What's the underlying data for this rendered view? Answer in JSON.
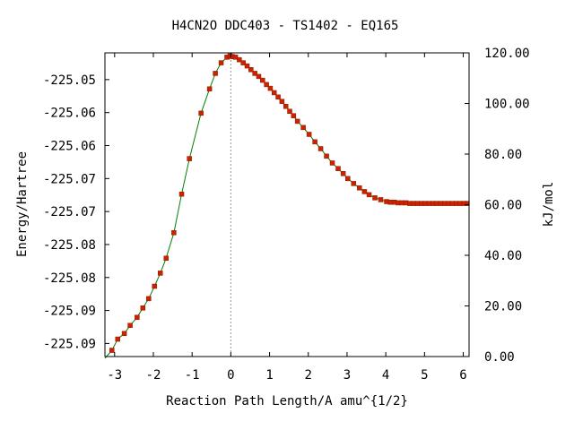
{
  "chart_data": {
    "type": "scatter",
    "title": "H4CN2O   DDC403 - TS1402 - EQ165",
    "xlabel": "Reaction Path Length/A amu^{1/2}",
    "ylabel_left": "Energy/Hartree",
    "ylabel_right": "kJ/mol",
    "xlim": [
      -3.25,
      6.15
    ],
    "ylim_left": [
      -225.0966,
      -225.0478
    ],
    "ylim_right": [
      0,
      120
    ],
    "x_ticks": [
      -3,
      -2,
      -1,
      0,
      1,
      2,
      3,
      4,
      5,
      6
    ],
    "y_ticks_left": [
      {
        "value": -225.0521,
        "label": "-225.05"
      },
      {
        "value": -225.0574,
        "label": "-225.06"
      },
      {
        "value": -225.0627,
        "label": "-225.06"
      },
      {
        "value": -225.068,
        "label": "-225.07"
      },
      {
        "value": -225.0733,
        "label": "-225.07"
      },
      {
        "value": -225.0786,
        "label": "-225.08"
      },
      {
        "value": -225.0839,
        "label": "-225.08"
      },
      {
        "value": -225.0892,
        "label": "-225.09"
      },
      {
        "value": -225.0945,
        "label": "-225.09"
      }
    ],
    "y_ticks_right": [
      "0.00",
      "20.00",
      "40.00",
      "60.00",
      "80.00",
      "100.00",
      "120.00"
    ],
    "ts_line_x": 0,
    "colors": {
      "line": "#008000",
      "points": "#cc2200",
      "ts_line": "#999999"
    },
    "series": [
      {
        "points": [
          [
            -3.07,
            -225.0956
          ],
          [
            -2.92,
            -225.0938
          ],
          [
            -2.75,
            -225.0929
          ],
          [
            -2.6,
            -225.0916
          ],
          [
            -2.42,
            -225.0903
          ],
          [
            -2.27,
            -225.0888
          ],
          [
            -2.12,
            -225.0873
          ],
          [
            -1.97,
            -225.0853
          ],
          [
            -1.82,
            -225.0832
          ],
          [
            -1.67,
            -225.0808
          ],
          [
            -1.47,
            -225.0767
          ],
          [
            -1.27,
            -225.0705
          ],
          [
            -1.07,
            -225.0648
          ],
          [
            -0.77,
            -225.0575
          ],
          [
            -0.55,
            -225.0536
          ],
          [
            -0.4,
            -225.0511
          ],
          [
            -0.25,
            -225.0494
          ],
          [
            -0.1,
            -225.0485
          ],
          [
            -0.02,
            -225.0483
          ],
          [
            0.04,
            -225.0484
          ],
          [
            0.12,
            -225.0485
          ],
          [
            0.22,
            -225.0489
          ],
          [
            0.32,
            -225.0494
          ],
          [
            0.42,
            -225.0499
          ],
          [
            0.52,
            -225.0505
          ],
          [
            0.62,
            -225.0511
          ],
          [
            0.72,
            -225.0516
          ],
          [
            0.82,
            -225.0522
          ],
          [
            0.92,
            -225.0529
          ],
          [
            1.02,
            -225.0535
          ],
          [
            1.12,
            -225.0542
          ],
          [
            1.22,
            -225.0549
          ],
          [
            1.32,
            -225.0556
          ],
          [
            1.42,
            -225.0564
          ],
          [
            1.52,
            -225.0572
          ],
          [
            1.62,
            -225.0579
          ],
          [
            1.72,
            -225.0588
          ],
          [
            1.87,
            -225.0598
          ],
          [
            2.02,
            -225.0609
          ],
          [
            2.17,
            -225.0621
          ],
          [
            2.32,
            -225.0632
          ],
          [
            2.47,
            -225.0644
          ],
          [
            2.62,
            -225.0655
          ],
          [
            2.77,
            -225.0664
          ],
          [
            2.9,
            -225.0672
          ],
          [
            3.02,
            -225.068
          ],
          [
            3.17,
            -225.0688
          ],
          [
            3.32,
            -225.0695
          ],
          [
            3.45,
            -225.0701
          ],
          [
            3.57,
            -225.0706
          ],
          [
            3.72,
            -225.0711
          ],
          [
            3.87,
            -225.0714
          ],
          [
            4.02,
            -225.0717
          ],
          [
            4.12,
            -225.0718
          ],
          [
            4.22,
            -225.0718
          ],
          [
            4.32,
            -225.0719
          ],
          [
            4.42,
            -225.0719
          ],
          [
            4.52,
            -225.0719
          ],
          [
            4.62,
            -225.072
          ],
          [
            4.72,
            -225.072
          ],
          [
            4.82,
            -225.072
          ],
          [
            4.92,
            -225.072
          ],
          [
            5.02,
            -225.072
          ],
          [
            5.12,
            -225.072
          ],
          [
            5.22,
            -225.072
          ],
          [
            5.32,
            -225.072
          ],
          [
            5.42,
            -225.072
          ],
          [
            5.52,
            -225.072
          ],
          [
            5.62,
            -225.072
          ],
          [
            5.72,
            -225.072
          ],
          [
            5.82,
            -225.072
          ],
          [
            5.92,
            -225.072
          ],
          [
            6.02,
            -225.072
          ],
          [
            6.1,
            -225.072
          ]
        ]
      }
    ]
  }
}
